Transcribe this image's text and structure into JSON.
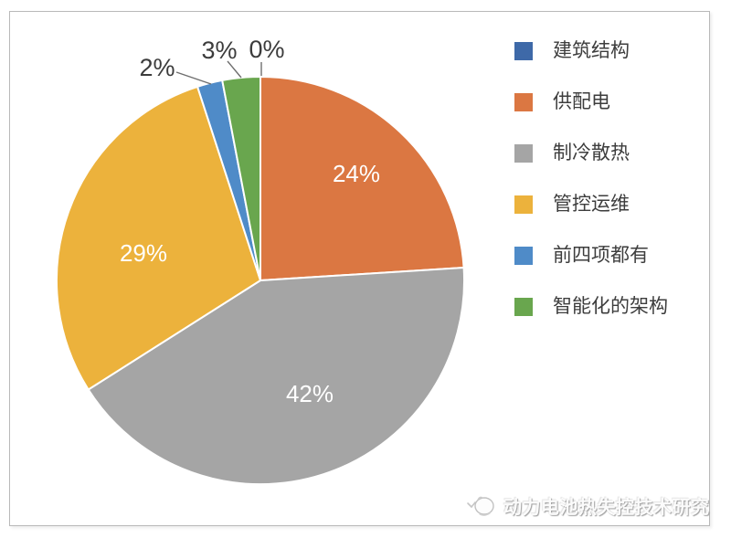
{
  "chart_data": {
    "type": "pie",
    "title": "",
    "start_angle_deg": 0,
    "direction": "clockwise",
    "legend_position": "right",
    "inside_label_color": "#FFFFFF",
    "outside_label_color": "#3C3C3C",
    "slices": [
      {
        "label": "建筑结构",
        "value_pct": 0,
        "display": "0%",
        "color": "#3E69A8",
        "label_style": "outside"
      },
      {
        "label": "供配电",
        "value_pct": 24,
        "display": "24%",
        "color": "#DB7742",
        "label_style": "inside"
      },
      {
        "label": "制冷散热",
        "value_pct": 42,
        "display": "42%",
        "color": "#A5A5A5",
        "label_style": "inside"
      },
      {
        "label": "管控运维",
        "value_pct": 29,
        "display": "29%",
        "color": "#ECB23C",
        "label_style": "inside"
      },
      {
        "label": "前四项都有",
        "value_pct": 2,
        "display": "2%",
        "color": "#4F8BC8",
        "label_style": "outside"
      },
      {
        "label": "智能化的架构",
        "value_pct": 3,
        "display": "3%",
        "color": "#69A64E",
        "label_style": "outside"
      }
    ],
    "legend_entries": [
      "建筑结构",
      "供配电",
      "制冷散热",
      "管控运维",
      "前四项都有",
      "智能化的架构"
    ]
  },
  "watermark": {
    "text": "动力电池热失控技术研究"
  }
}
